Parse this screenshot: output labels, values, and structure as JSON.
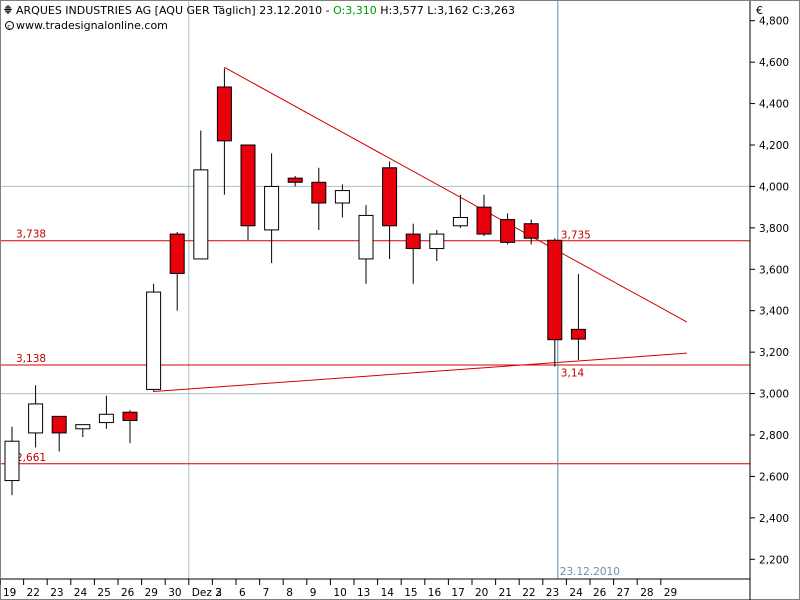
{
  "header": {
    "title_prefix": "ARQUES INDUSTRIES AG [AQU GER  Täglich] 23.12.2010 - ",
    "open_part": "O:3,310",
    "rest": " H:3,577 L:3,162 C:3,263",
    "url": "www.tradesignalonline.com",
    "currency": "€"
  },
  "colors": {
    "up_fill": "#ffffff",
    "down_fill": "#e8000b",
    "line_red": "#d40000",
    "label_red": "#c00000",
    "cursor_blue": "#5a8fa8",
    "grid": "#a9c3c7",
    "open_green": "#009900"
  },
  "chart_data": {
    "type": "candlestick",
    "ylim": [
      2.1,
      4.9
    ],
    "y_ticks": [
      2.2,
      2.4,
      2.6,
      2.8,
      3.0,
      3.2,
      3.4,
      3.6,
      3.8,
      4.0,
      4.2,
      4.4,
      4.6,
      4.8
    ],
    "y_tick_labels": [
      "2,200",
      "2,400",
      "2,600",
      "2,800",
      "3,000",
      "3,200",
      "3,400",
      "3,600",
      "3,800",
      "4,000",
      "4,200",
      "4,400",
      "4,600",
      "4,800"
    ],
    "gridlines_y": [
      3.0,
      4.0
    ],
    "x_labels": [
      "19",
      "22",
      "23",
      "24",
      "25",
      "26",
      "29",
      "30",
      "Dez 2",
      "3",
      "6",
      "7",
      "8",
      "9",
      "10",
      "13",
      "14",
      "15",
      "16",
      "17",
      "20",
      "21",
      "22",
      "23",
      "24",
      "26",
      "27",
      "28",
      "29"
    ],
    "candles": [
      {
        "o": 2.58,
        "h": 2.84,
        "l": 2.51,
        "c": 2.77
      },
      {
        "o": 2.81,
        "h": 3.04,
        "l": 2.74,
        "c": 2.95
      },
      {
        "o": 2.89,
        "h": 2.89,
        "l": 2.72,
        "c": 2.81
      },
      {
        "o": 2.83,
        "h": 2.85,
        "l": 2.79,
        "c": 2.85
      },
      {
        "o": 2.86,
        "h": 2.99,
        "l": 2.83,
        "c": 2.9
      },
      {
        "o": 2.91,
        "h": 2.92,
        "l": 2.76,
        "c": 2.87
      },
      {
        "o": 3.02,
        "h": 3.53,
        "l": 3.01,
        "c": 3.49
      },
      {
        "o": 3.77,
        "h": 3.78,
        "l": 3.4,
        "c": 3.58
      },
      {
        "o": 3.65,
        "h": 4.27,
        "l": 3.65,
        "c": 4.08
      },
      {
        "o": 4.48,
        "h": 4.57,
        "l": 3.96,
        "c": 4.22
      },
      {
        "o": 4.2,
        "h": 4.2,
        "l": 3.74,
        "c": 3.81
      },
      {
        "o": 3.79,
        "h": 4.16,
        "l": 3.63,
        "c": 4.0
      },
      {
        "o": 4.04,
        "h": 4.05,
        "l": 4.0,
        "c": 4.02
      },
      {
        "o": 4.02,
        "h": 4.09,
        "l": 3.79,
        "c": 3.92
      },
      {
        "o": 3.92,
        "h": 4.01,
        "l": 3.85,
        "c": 3.98
      },
      {
        "o": 3.65,
        "h": 3.91,
        "l": 3.53,
        "c": 3.86
      },
      {
        "o": 4.09,
        "h": 4.12,
        "l": 3.65,
        "c": 3.81
      },
      {
        "o": 3.77,
        "h": 3.82,
        "l": 3.53,
        "c": 3.7
      },
      {
        "o": 3.7,
        "h": 3.79,
        "l": 3.64,
        "c": 3.77
      },
      {
        "o": 3.81,
        "h": 3.96,
        "l": 3.8,
        "c": 3.85
      },
      {
        "o": 3.9,
        "h": 3.96,
        "l": 3.76,
        "c": 3.77
      },
      {
        "o": 3.84,
        "h": 3.87,
        "l": 3.72,
        "c": 3.73
      },
      {
        "o": 3.82,
        "h": 3.84,
        "l": 3.72,
        "c": 3.75
      },
      {
        "o": 3.74,
        "h": 3.75,
        "l": 3.13,
        "c": 3.26
      },
      {
        "o": 3.31,
        "h": 3.577,
        "l": 3.162,
        "c": 3.263
      }
    ],
    "h_lines": [
      {
        "value": 3.738,
        "label": "3,738"
      },
      {
        "value": 3.138,
        "label": "3,138"
      },
      {
        "value": 2.661,
        "label": "2,661"
      }
    ],
    "trendlines": [
      {
        "from": {
          "index": 9,
          "y": 4.575
        },
        "to": {
          "index": 28.6,
          "y": 3.345
        }
      },
      {
        "from": {
          "index": 6,
          "y": 3.01
        },
        "to": {
          "index": 28.6,
          "y": 3.195
        }
      }
    ],
    "annotations": [
      {
        "index": 23,
        "y": 3.735,
        "text": "3,735"
      },
      {
        "index": 23,
        "y": 3.14,
        "text": "3,14"
      }
    ],
    "cursor": {
      "index": 23,
      "label": "23.12.2010"
    },
    "vline_grid_index": 8
  }
}
